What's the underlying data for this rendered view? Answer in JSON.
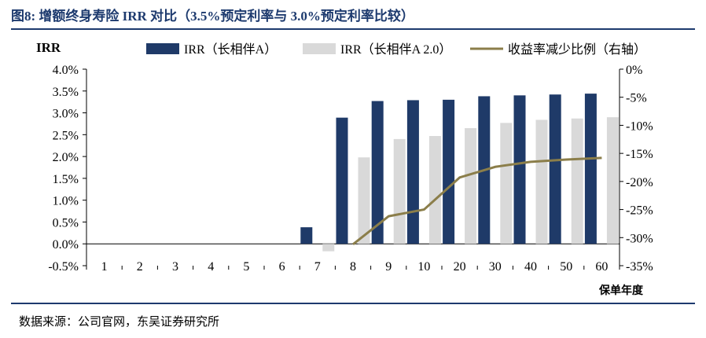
{
  "figure": {
    "title": "图8:  增额终身寿险 IRR 对比（3.5%预定利率与 3.0%预定利率比较）",
    "source": "数据来源：公司官网，东吴证券研究所"
  },
  "chart_data": {
    "type": "bar",
    "categories": [
      "1",
      "2",
      "3",
      "4",
      "5",
      "6",
      "7",
      "8",
      "9",
      "10",
      "20",
      "30",
      "40",
      "50",
      "60"
    ],
    "xlabel": "保单年度",
    "ylabel": "IRR",
    "ylim": [
      -0.5,
      4.0
    ],
    "y2lim": [
      -35,
      0
    ],
    "yticks": [
      "4.0%",
      "3.5%",
      "3.0%",
      "2.5%",
      "2.0%",
      "1.5%",
      "1.0%",
      "0.5%",
      "0.0%",
      "-0.5%"
    ],
    "y2ticks": [
      "0%",
      "-5%",
      "-10%",
      "-15%",
      "-20%",
      "-25%",
      "-30%",
      "-35%"
    ],
    "legend_position": "top",
    "grid": false,
    "series": [
      {
        "name": "IRR（长相伴A）",
        "kind": "bar",
        "color": "#1f3a68",
        "values": [
          null,
          null,
          null,
          null,
          null,
          null,
          0.38,
          2.89,
          3.27,
          3.29,
          3.3,
          3.38,
          3.4,
          3.42,
          3.44
        ]
      },
      {
        "name": "IRR（长相伴A 2.0）",
        "kind": "bar",
        "color": "#d9d9d9",
        "values": [
          null,
          null,
          null,
          null,
          null,
          null,
          -0.17,
          1.98,
          2.4,
          2.47,
          2.65,
          2.77,
          2.84,
          2.87,
          2.9
        ]
      },
      {
        "name": "收益率减少比例（右轴）",
        "kind": "line",
        "axis": "right",
        "color": "#8b7e4a",
        "values": [
          null,
          null,
          null,
          null,
          null,
          null,
          null,
          -31.2,
          -26.2,
          -25.0,
          -19.3,
          -17.4,
          -16.5,
          -16.1,
          -15.8
        ]
      }
    ]
  }
}
